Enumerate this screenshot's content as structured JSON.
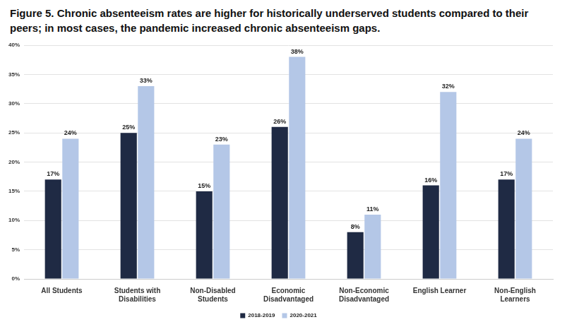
{
  "chart_data": {
    "type": "bar",
    "title": "Figure 5. Chronic absenteeism rates are higher for historically underserved students compared to their peers; in most cases, the pandemic increased chronic absenteeism gaps.",
    "categories": [
      "All Students",
      "Students with Disabilities",
      "Non-Disabled Students",
      "Economic Disadvantaged",
      "Non-Economic Disadvantaged",
      "English Learner",
      "Non-English Learners"
    ],
    "series": [
      {
        "name": "2018-2019",
        "color": "#1f2a44",
        "values": [
          17,
          25,
          15,
          26,
          8,
          16,
          17
        ],
        "value_labels": [
          "17%",
          "25%",
          "15%",
          "26%",
          "8%",
          "16%",
          "17%"
        ]
      },
      {
        "name": "2020-2021",
        "color": "#b4c7e7",
        "values": [
          24,
          33,
          23,
          38,
          11,
          32,
          24
        ],
        "value_labels": [
          "24%",
          "33%",
          "23%",
          "38%",
          "11%",
          "32%",
          "24%"
        ]
      }
    ],
    "ylim": [
      0,
      40
    ],
    "yticks": [
      {
        "value": 0,
        "label": "0%"
      },
      {
        "value": 5,
        "label": "5%"
      },
      {
        "value": 10,
        "label": "10%"
      },
      {
        "value": 15,
        "label": "15%"
      },
      {
        "value": 20,
        "label": "20%"
      },
      {
        "value": 25,
        "label": "25%"
      },
      {
        "value": 30,
        "label": "30%"
      },
      {
        "value": 35,
        "label": "35%"
      },
      {
        "value": 40,
        "label": "40%"
      }
    ],
    "grid": true,
    "legend": "bottom",
    "data_labels": true
  }
}
